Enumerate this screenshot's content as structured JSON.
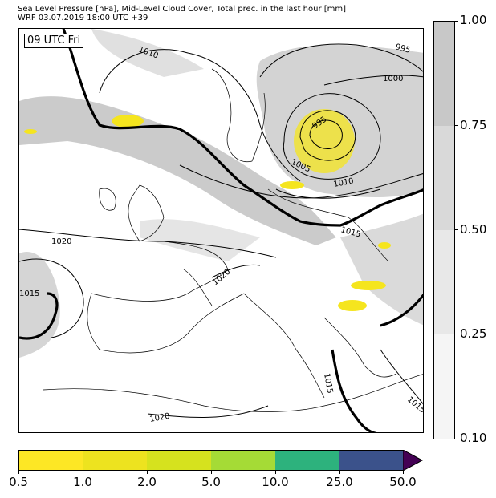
{
  "header": {
    "line1": "Sea Level Pressure [hPa], Mid-Level Cloud Cover, Total prec. in the last hour [mm]",
    "line2": "WRF 03.07.2019 18:00 UTC +39"
  },
  "map": {
    "time_label": "09 UTC Fri",
    "isobar_labels": [
      "1010",
      "995",
      "1000",
      "995",
      "1005",
      "1010",
      "1015",
      "1020",
      "1015",
      "1020",
      "1015",
      "1020",
      "1015"
    ],
    "colors": {
      "cloud_grey": "#c8c8c8",
      "cloud_light": "#dedede",
      "precip_yellow": "#f5e51e",
      "isobar": "#000000"
    }
  },
  "cloud_colorbar": {
    "ticks": [
      "1.00",
      "0.75",
      "0.50",
      "0.25",
      "0.10"
    ],
    "colors": [
      "#c8c8c8",
      "#d9d9d9",
      "#e8e8e8",
      "#f5f5f5"
    ]
  },
  "precip_colorbar": {
    "ticks": [
      "0.5",
      "1.0",
      "2.0",
      "5.0",
      "10.0",
      "25.0",
      "50.0"
    ],
    "colors": [
      "#fde725",
      "#ede31f",
      "#d6e21e",
      "#a5db36",
      "#2db27d",
      "#3b528b",
      "#440154"
    ]
  }
}
